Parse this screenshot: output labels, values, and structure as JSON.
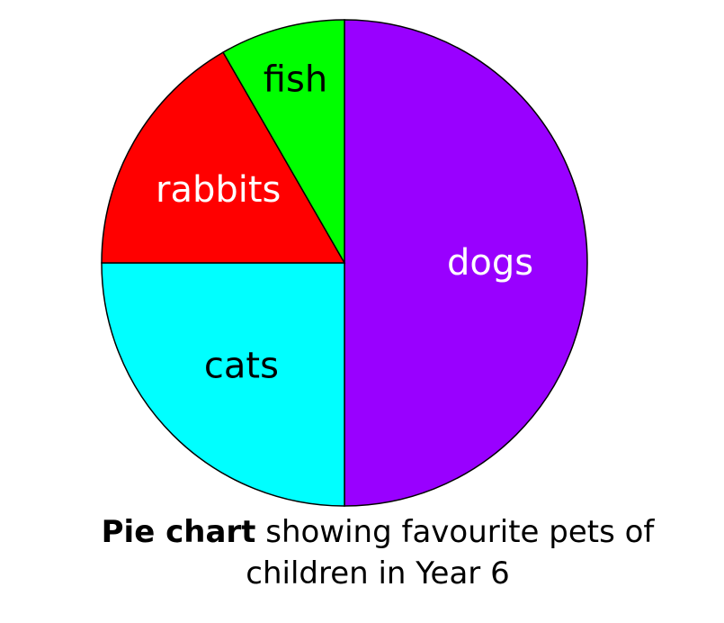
{
  "chart_data": {
    "type": "pie",
    "slices": [
      {
        "label": "dogs",
        "value": 50,
        "color": "#9900ff",
        "label_color": "#ffffff"
      },
      {
        "label": "cats",
        "value": 25,
        "color": "#00ffff",
        "label_color": "#000000"
      },
      {
        "label": "rabbits",
        "value": 16.67,
        "color": "#ff0000",
        "label_color": "#ffffff"
      },
      {
        "label": "fish",
        "value": 8.33,
        "color": "#00ff00",
        "label_color": "#000000"
      }
    ],
    "start_angle_deg": 0,
    "direction": "clockwise",
    "stroke_color": "#000000"
  },
  "caption": {
    "bold": "Pie chart",
    "rest": " showing favourite pets of children in Year 6"
  }
}
